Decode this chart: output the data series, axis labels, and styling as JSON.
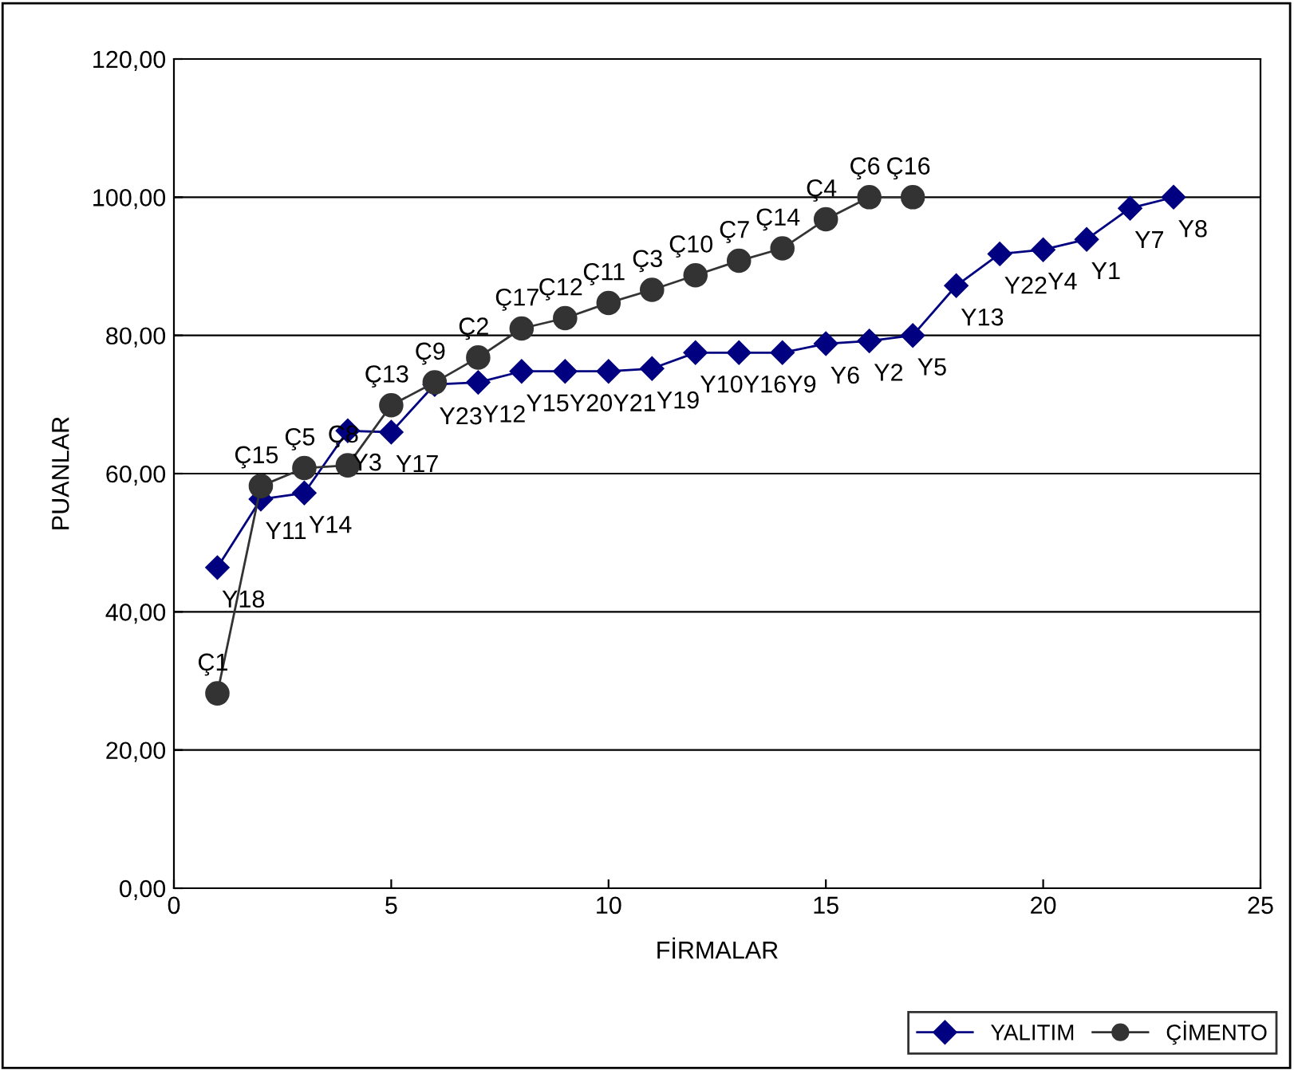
{
  "chart_data": {
    "type": "line",
    "xlabel": "FİRMALAR",
    "ylabel": "PUANLAR",
    "xlim": [
      0,
      25
    ],
    "xticks": [
      0,
      5,
      10,
      15,
      20,
      25
    ],
    "ylim": [
      0,
      120
    ],
    "yticks": [
      {
        "value": 0,
        "label": "0,00"
      },
      {
        "value": 20,
        "label": "20,00"
      },
      {
        "value": 40,
        "label": "40,00"
      },
      {
        "value": 60,
        "label": "60,00"
      },
      {
        "value": 80,
        "label": "80,00"
      },
      {
        "value": 100,
        "label": "100,00"
      },
      {
        "value": 120,
        "label": "120,00"
      }
    ],
    "grid": "y",
    "legend": "bottom right",
    "line_style": "solid",
    "series": [
      {
        "name": "YALITIM",
        "color": "#000080",
        "marker": "diamond",
        "x": [
          1,
          2,
          3,
          4,
          5,
          6,
          7,
          8,
          9,
          10,
          11,
          12,
          13,
          14,
          15,
          16,
          17,
          18,
          19,
          20,
          21,
          22,
          23
        ],
        "values": [
          46.4,
          56.3,
          57.2,
          66.2,
          66,
          72.9,
          73.2,
          74.8,
          74.8,
          74.8,
          75.2,
          77.5,
          77.5,
          77.5,
          78.8,
          79.2,
          80,
          87.2,
          91.8,
          92.4,
          93.9,
          98.4,
          100
        ]
      },
      {
        "name": "ÇİMENTO",
        "color": "#333333",
        "marker": "circle",
        "x": [
          1,
          2,
          3,
          4,
          5,
          6,
          7,
          8,
          9,
          10,
          11,
          12,
          13,
          14,
          15,
          16,
          17
        ],
        "values": [
          28.2,
          58.2,
          60.8,
          61.2,
          69.9,
          73.2,
          76.8,
          81,
          82.5,
          84.7,
          86.6,
          88.7,
          90.8,
          92.6,
          96.8,
          100,
          100
        ]
      }
    ],
    "annotations": [
      {
        "text": "Y18",
        "x": 1,
        "y": 46.4
      },
      {
        "text": "Y11",
        "x": 2,
        "y": 56.3
      },
      {
        "text": "Y14",
        "x": 3,
        "y": 57.2
      },
      {
        "text": "Y3",
        "x": 4,
        "y": 66.2
      },
      {
        "text": "Y17",
        "x": 5,
        "y": 66
      },
      {
        "text": "Y23",
        "x": 6,
        "y": 72.9
      },
      {
        "text": "Y12",
        "x": 7,
        "y": 73.2
      },
      {
        "text": "Y15",
        "x": 8,
        "y": 74.8
      },
      {
        "text": "Y20",
        "x": 9,
        "y": 74.8
      },
      {
        "text": "Y21",
        "x": 10,
        "y": 74.8
      },
      {
        "text": "Y19",
        "x": 11,
        "y": 75.2
      },
      {
        "text": "Y10",
        "x": 12,
        "y": 77.5
      },
      {
        "text": "Y16",
        "x": 13,
        "y": 77.5
      },
      {
        "text": "Y9",
        "x": 14,
        "y": 77.5
      },
      {
        "text": "Y6",
        "x": 15,
        "y": 78.8
      },
      {
        "text": "Y2",
        "x": 16,
        "y": 79.2
      },
      {
        "text": "Y5",
        "x": 17,
        "y": 80
      },
      {
        "text": "Y13",
        "x": 18,
        "y": 87.2
      },
      {
        "text": "Y22",
        "x": 19,
        "y": 91.8
      },
      {
        "text": "Y4",
        "x": 20,
        "y": 92.4
      },
      {
        "text": "Y1",
        "x": 21,
        "y": 93.9
      },
      {
        "text": "Y7",
        "x": 22,
        "y": 98.4
      },
      {
        "text": "Y8",
        "x": 23,
        "y": 100
      },
      {
        "text": "Ç1",
        "x": 1,
        "y": 28.2
      },
      {
        "text": "Ç15",
        "x": 2,
        "y": 58.2
      },
      {
        "text": "Ç5",
        "x": 3,
        "y": 60.8
      },
      {
        "text": "Ç8",
        "x": 4,
        "y": 61.2
      },
      {
        "text": "Ç13",
        "x": 5,
        "y": 69.9
      },
      {
        "text": "Ç9",
        "x": 6,
        "y": 73.2
      },
      {
        "text": "Ç2",
        "x": 7,
        "y": 76.8
      },
      {
        "text": "Ç17",
        "x": 8,
        "y": 81
      },
      {
        "text": "Ç12",
        "x": 9,
        "y": 82.5
      },
      {
        "text": "Ç11",
        "x": 10,
        "y": 84.7
      },
      {
        "text": "Ç3",
        "x": 11,
        "y": 86.6
      },
      {
        "text": "Ç10",
        "x": 12,
        "y": 88.7
      },
      {
        "text": "Ç7",
        "x": 13,
        "y": 90.8
      },
      {
        "text": "Ç14",
        "x": 14,
        "y": 92.6
      },
      {
        "text": "Ç4",
        "x": 15,
        "y": 96.8
      },
      {
        "text": "Ç6",
        "x": 16,
        "y": 100
      },
      {
        "text": "Ç16",
        "x": 17,
        "y": 100
      }
    ]
  }
}
